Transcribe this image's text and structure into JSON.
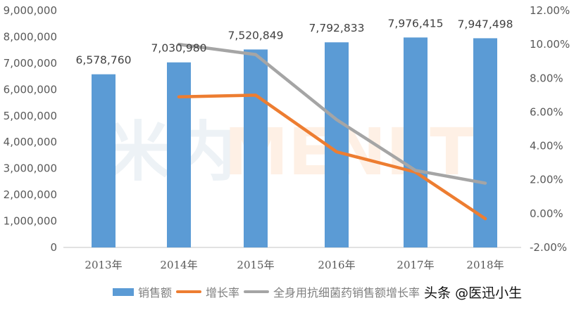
{
  "chart_data": {
    "type": "bar+line",
    "title": "",
    "categories": [
      "2013年",
      "2014年",
      "2015年",
      "2016年",
      "2017年",
      "2018年"
    ],
    "series": [
      {
        "name": "销售额",
        "type": "bar",
        "axis": "left",
        "color": "#5b9bd5",
        "values": [
          6578760,
          7030980,
          7520849,
          7792833,
          7976415,
          7947498
        ],
        "labels": [
          "6,578,760",
          "7,030,980",
          "7,520,849",
          "7,792,833",
          "7,976,415",
          "7,947,498"
        ]
      },
      {
        "name": "增长率",
        "type": "line",
        "axis": "right",
        "color": "#ed7d31",
        "values": [
          null,
          6.9,
          7.0,
          3.65,
          2.45,
          -0.3
        ]
      },
      {
        "name": "全身用抗细菌药销售额增长率",
        "type": "line",
        "axis": "right",
        "color": "#a5a5a5",
        "values": [
          null,
          10.0,
          9.4,
          5.55,
          2.55,
          1.8
        ]
      }
    ],
    "left_axis": {
      "ylim": [
        0,
        9000000
      ],
      "ticks": [
        "0",
        "1,000,000",
        "2,000,000",
        "3,000,000",
        "4,000,000",
        "5,000,000",
        "6,000,000",
        "7,000,000",
        "8,000,000",
        "9,000,000"
      ]
    },
    "right_axis": {
      "ylim": [
        -2,
        12
      ],
      "unit": "%",
      "ticks": [
        "-2.00%",
        "0.00%",
        "2.00%",
        "4.00%",
        "6.00%",
        "8.00%",
        "10.00%",
        "12.00%"
      ]
    },
    "grid": false,
    "legend_position": "bottom",
    "watermark": "米内MENET"
  },
  "legend": {
    "items": [
      {
        "label": "销售额",
        "color": "#5b9bd5",
        "kind": "bar"
      },
      {
        "label": "增长率",
        "color": "#ed7d31",
        "kind": "line"
      },
      {
        "label": "全身用抗细菌药销售额增长率",
        "color": "#a5a5a5",
        "kind": "line"
      }
    ]
  },
  "source_tag": "头条 @医迅小生"
}
